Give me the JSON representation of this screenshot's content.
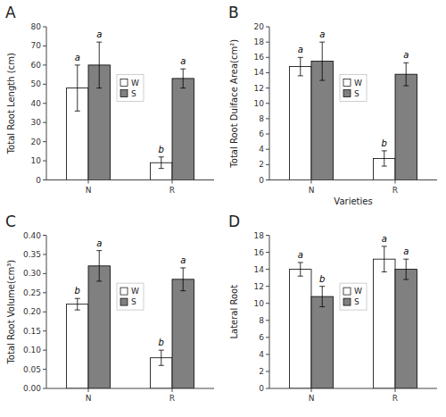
{
  "chart_data": [
    {
      "type": "bar",
      "title": "A",
      "ylabel": "Total Root Length (cm)",
      "categories": [
        "N",
        "R"
      ],
      "series": [
        {
          "name": "W",
          "color": "#FFFFFF",
          "values": [
            48,
            9
          ],
          "errors": [
            12,
            3
          ],
          "letters": [
            "a",
            "b"
          ]
        },
        {
          "name": "S",
          "color": "#808080",
          "values": [
            60,
            53
          ],
          "errors": [
            12,
            5
          ],
          "letters": [
            "a",
            "a"
          ]
        }
      ],
      "ylim": [
        0,
        80
      ],
      "yticks": [
        0,
        10,
        20,
        30,
        40,
        50,
        60,
        70,
        80
      ],
      "grid": false,
      "legend": "center"
    },
    {
      "type": "bar",
      "title": "B",
      "ylabel": "Total Root Duiface Area(cm²)",
      "xlabel": "Varieties",
      "categories": [
        "N",
        "R"
      ],
      "series": [
        {
          "name": "W",
          "color": "#FFFFFF",
          "values": [
            14.8,
            2.8
          ],
          "errors": [
            1.2,
            1.0
          ],
          "letters": [
            "a",
            "b"
          ]
        },
        {
          "name": "S",
          "color": "#808080",
          "values": [
            15.5,
            13.8
          ],
          "errors": [
            2.5,
            1.5
          ],
          "letters": [
            "a",
            "a"
          ]
        }
      ],
      "ylim": [
        0,
        20
      ],
      "yticks": [
        0,
        2,
        4,
        6,
        8,
        10,
        12,
        14,
        16,
        18,
        20
      ],
      "grid": false,
      "legend": "center"
    },
    {
      "type": "bar",
      "title": "C",
      "ylabel": "Total Root Volume(cm³)",
      "categories": [
        "N",
        "R"
      ],
      "series": [
        {
          "name": "W",
          "color": "#FFFFFF",
          "values": [
            0.22,
            0.08
          ],
          "errors": [
            0.015,
            0.02
          ],
          "letters": [
            "b",
            "b"
          ]
        },
        {
          "name": "S",
          "color": "#808080",
          "values": [
            0.32,
            0.285
          ],
          "errors": [
            0.04,
            0.03
          ],
          "letters": [
            "a",
            "a"
          ]
        }
      ],
      "ylim": [
        0,
        0.4
      ],
      "yticks": [
        {
          "value": 0,
          "label": "0.00"
        },
        0.05,
        {
          "value": 0.1,
          "label": "0.10"
        },
        0.15,
        {
          "value": 0.2,
          "label": "0.20"
        },
        0.25,
        {
          "value": 0.3,
          "label": "0.30"
        },
        0.35,
        {
          "value": 0.4,
          "label": "0.40"
        }
      ],
      "grid": false,
      "legend": "center"
    },
    {
      "type": "bar",
      "title": "D",
      "ylabel": "Lateral Root",
      "categories": [
        "N",
        "R"
      ],
      "series": [
        {
          "name": "W",
          "color": "#FFFFFF",
          "values": [
            14.0,
            15.2
          ],
          "errors": [
            0.8,
            1.5
          ],
          "letters": [
            "a",
            "a"
          ]
        },
        {
          "name": "S",
          "color": "#808080",
          "values": [
            10.8,
            14.0
          ],
          "errors": [
            1.2,
            1.2
          ],
          "letters": [
            "b",
            "a"
          ]
        }
      ],
      "ylim": [
        0,
        18
      ],
      "yticks": [
        0,
        2,
        4,
        6,
        8,
        10,
        12,
        14,
        16,
        18
      ],
      "grid": false,
      "legend": "center"
    }
  ]
}
